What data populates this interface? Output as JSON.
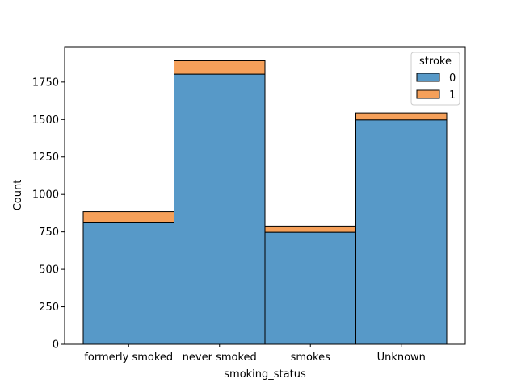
{
  "chart_data": {
    "type": "bar",
    "stacked": true,
    "xlabel": "smoking_status",
    "ylabel": "Count",
    "categories": [
      "formerly smoked",
      "never smoked",
      "smokes",
      "Unknown"
    ],
    "series": [
      {
        "name": "0",
        "values": [
          815,
          1802,
          747,
          1497
        ],
        "color": "#5799c8"
      },
      {
        "name": "1",
        "values": [
          70,
          90,
          42,
          47
        ],
        "color": "#f5a05a"
      }
    ],
    "ylim": [
      0,
      1986
    ],
    "yticks": [
      0,
      250,
      500,
      750,
      1000,
      1250,
      1500,
      1750
    ],
    "legend": {
      "title": "stroke",
      "placement": "top-right"
    },
    "grid": false
  }
}
